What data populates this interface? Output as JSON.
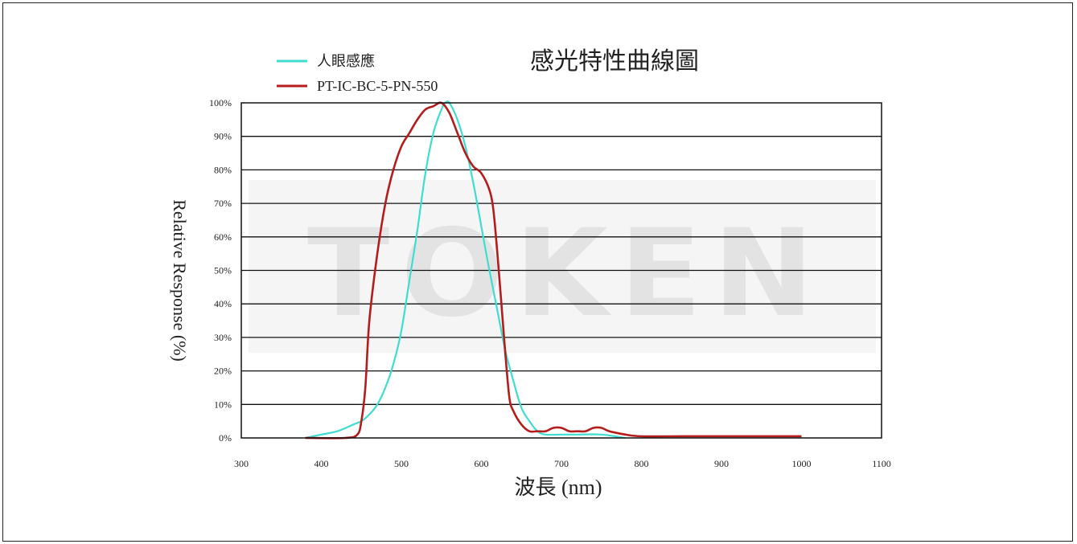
{
  "chart_data": {
    "type": "line",
    "title": "感光特性曲線圖",
    "xlabel": "波長 (nm)",
    "ylabel": "Relative Response (%)",
    "xlim": [
      300,
      1100
    ],
    "ylim": [
      0,
      100
    ],
    "x_ticks": [
      "300",
      "400",
      "500",
      "600",
      "700",
      "800",
      "900",
      "1000",
      "1100"
    ],
    "y_ticks": [
      "0%",
      "10%",
      "20%",
      "30%",
      "40%",
      "50%",
      "60%",
      "70%",
      "80%",
      "90%",
      "100%"
    ],
    "grid": "horizontal",
    "legend": "top-left",
    "series": [
      {
        "name": "人眼感應",
        "color": "#3fdcd2",
        "x": [
          380,
          400,
          420,
          440,
          450,
          460,
          470,
          480,
          490,
          500,
          510,
          520,
          530,
          540,
          550,
          555,
          560,
          570,
          580,
          590,
          600,
          610,
          620,
          630,
          640,
          650,
          660,
          670,
          680,
          700,
          720,
          750,
          780
        ],
        "y": [
          0,
          1,
          2,
          4,
          5,
          7,
          10,
          15,
          22,
          32,
          47,
          62,
          79,
          91,
          98,
          100,
          100,
          95,
          87,
          76,
          63,
          50,
          38,
          26,
          17,
          9,
          5,
          2,
          1,
          1,
          1,
          1,
          0
        ]
      },
      {
        "name": "PT-IC-BC-5-PN-550",
        "color": "#b51c1c",
        "x": [
          380,
          430,
          445,
          450,
          455,
          460,
          470,
          480,
          490,
          500,
          510,
          520,
          530,
          540,
          550,
          560,
          570,
          580,
          590,
          600,
          610,
          615,
          620,
          625,
          630,
          635,
          640,
          650,
          660,
          670,
          680,
          690,
          700,
          710,
          720,
          730,
          740,
          750,
          760,
          780,
          800,
          850,
          900,
          950,
          1000
        ],
        "y": [
          0,
          0,
          1,
          5,
          15,
          35,
          55,
          70,
          80,
          87,
          91,
          95,
          98,
          99,
          100,
          97,
          91,
          85,
          81,
          79,
          74,
          68,
          55,
          40,
          25,
          12,
          8,
          4,
          2,
          2,
          2,
          3,
          3,
          2,
          2,
          2,
          3,
          3,
          2,
          1,
          0.5,
          0.5,
          0.5,
          0.5,
          0.5
        ]
      }
    ]
  },
  "watermark": "TOKEN"
}
